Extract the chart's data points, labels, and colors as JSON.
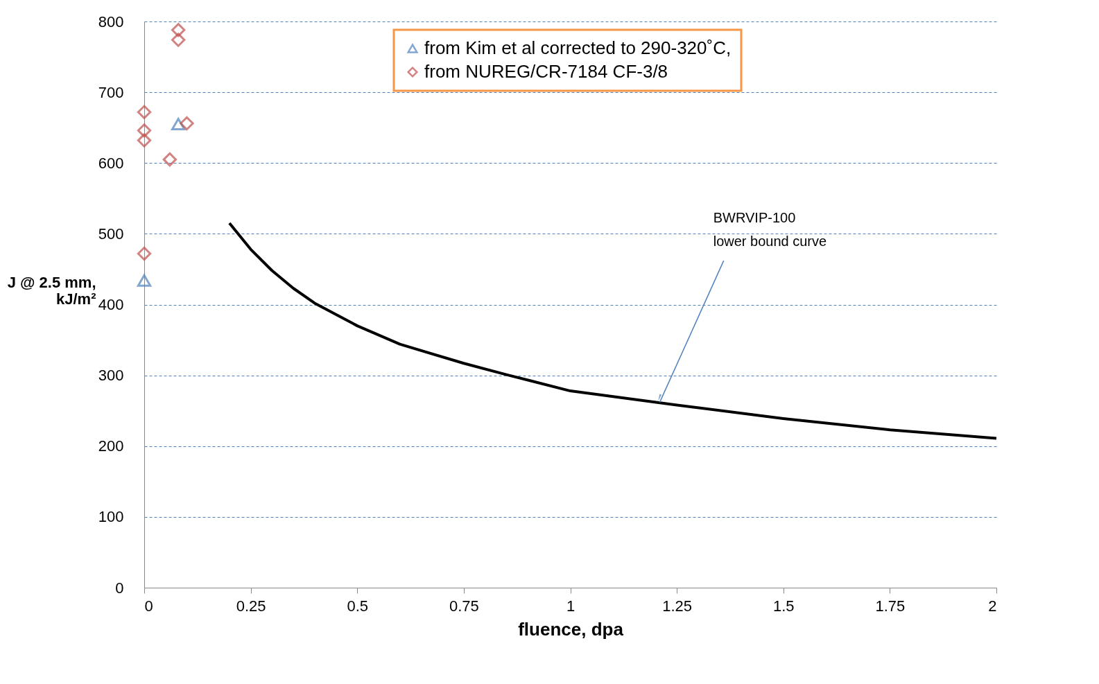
{
  "chart_data": {
    "type": "scatter",
    "xlabel": "fluence, dpa",
    "ylabel": "J @ 2.5 mm,\nkJ/m²",
    "xlim": [
      0,
      2
    ],
    "xticks": [
      0,
      0.25,
      0.5,
      0.75,
      1,
      1.25,
      1.5,
      1.75,
      2
    ],
    "ylim": [
      0,
      800
    ],
    "yticks": [
      0,
      100,
      200,
      300,
      400,
      500,
      600,
      700,
      800
    ],
    "grid": "y",
    "legend": "top right",
    "series": [
      {
        "name": "from Kim et al corrected to 290-320˚C,",
        "color": "#4f81bd",
        "marker": "triangle",
        "x": [
          0,
          0.08
        ],
        "values": [
          434,
          655
        ]
      },
      {
        "name": "from NUREG/CR-7184 CF-3/8",
        "color": "#c0504d",
        "marker": "diamond",
        "x": [
          0,
          0,
          0,
          0,
          0.06,
          0.08,
          0.08,
          0.1
        ],
        "values": [
          672,
          646,
          632,
          472,
          605,
          788,
          774,
          656
        ]
      },
      {
        "type": "line",
        "color": "#000000",
        "marker": "none",
        "x": [
          0.2,
          0.25,
          0.3,
          0.35,
          0.4,
          0.5,
          0.6,
          0.75,
          0.85,
          1,
          1.25,
          1.5,
          1.75,
          2
        ],
        "values": [
          515,
          478,
          448,
          423,
          402,
          370,
          344,
          317,
          301,
          278,
          258,
          239,
          223,
          211
        ]
      }
    ],
    "annotations": [
      {
        "text": "BWRVIP-100\nlower bound  curve",
        "x": 1.21,
        "y": 262
      }
    ]
  }
}
